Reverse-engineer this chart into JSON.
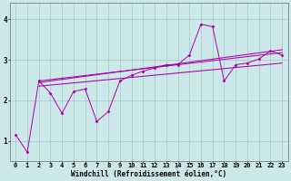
{
  "background_color": "#cde8e8",
  "grid_color": "#aacccc",
  "line_color": "#aa00aa",
  "marker_color": "#aa00aa",
  "xlabel": "Windchill (Refroidissement éolien,°C)",
  "xlabel_fontsize": 5.5,
  "xlim": [
    -0.5,
    23.5
  ],
  "ylim": [
    0.5,
    4.4
  ],
  "yticks": [
    1,
    2,
    3,
    4
  ],
  "xticks": [
    0,
    1,
    2,
    3,
    4,
    5,
    6,
    7,
    8,
    9,
    10,
    11,
    12,
    13,
    14,
    15,
    16,
    17,
    18,
    19,
    20,
    21,
    22,
    23
  ],
  "tick_fontsize": 5.0,
  "data_line": [
    [
      0,
      1.15
    ],
    [
      1,
      0.72
    ],
    [
      2,
      2.48
    ],
    [
      3,
      2.18
    ],
    [
      4,
      1.68
    ],
    [
      5,
      2.22
    ],
    [
      6,
      2.28
    ],
    [
      7,
      1.48
    ],
    [
      8,
      1.72
    ],
    [
      9,
      2.48
    ],
    [
      10,
      2.62
    ],
    [
      11,
      2.72
    ],
    [
      12,
      2.8
    ],
    [
      13,
      2.88
    ],
    [
      14,
      2.88
    ],
    [
      15,
      3.12
    ],
    [
      16,
      3.88
    ],
    [
      17,
      3.82
    ],
    [
      18,
      2.48
    ],
    [
      19,
      2.88
    ],
    [
      20,
      2.92
    ],
    [
      21,
      3.02
    ],
    [
      22,
      3.22
    ],
    [
      23,
      3.12
    ]
  ],
  "trend_line1": [
    [
      2,
      2.48
    ],
    [
      23,
      3.18
    ]
  ],
  "trend_line2": [
    [
      2,
      2.44
    ],
    [
      23,
      3.25
    ]
  ],
  "trend_line3": [
    [
      2,
      2.35
    ],
    [
      23,
      2.92
    ]
  ]
}
